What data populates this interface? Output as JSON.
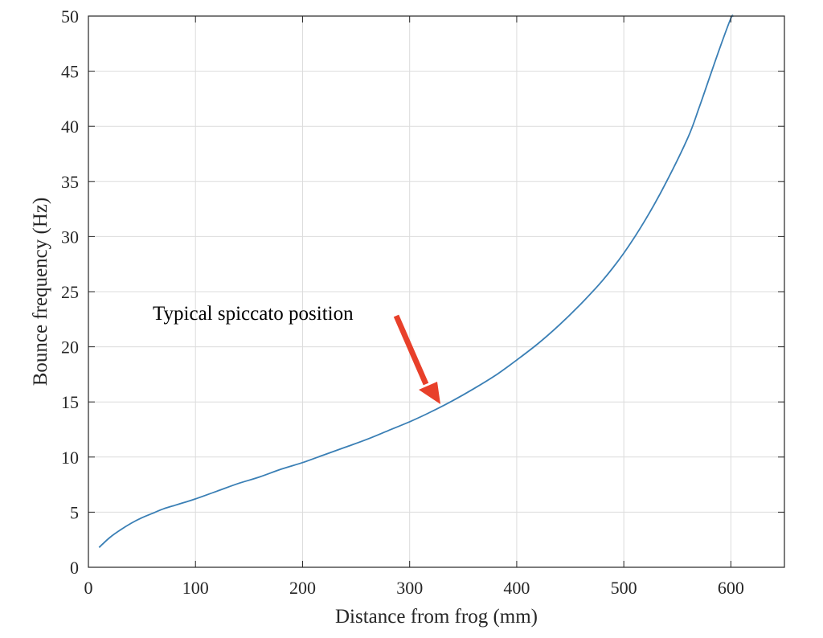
{
  "chart_data": {
    "type": "line",
    "title": "",
    "xlabel": "Distance from frog (mm)",
    "ylabel": "Bounce frequency (Hz)",
    "xlim": [
      0,
      650
    ],
    "ylim": [
      0,
      50
    ],
    "xticks": [
      0,
      100,
      200,
      300,
      400,
      500,
      600
    ],
    "yticks": [
      0,
      5,
      10,
      15,
      20,
      25,
      30,
      35,
      40,
      45,
      50
    ],
    "grid": true,
    "legend": "none",
    "series": [
      {
        "color": "#3a7fb5",
        "x": [
          10,
          20,
          30,
          40,
          50,
          60,
          70,
          80,
          90,
          100,
          120,
          140,
          160,
          180,
          200,
          220,
          240,
          260,
          280,
          300,
          320,
          340,
          360,
          380,
          400,
          420,
          440,
          460,
          480,
          500,
          520,
          540,
          560,
          570,
          580,
          590,
          600,
          602
        ],
        "y": [
          1.8,
          2.7,
          3.4,
          4.0,
          4.5,
          4.9,
          5.3,
          5.6,
          5.9,
          6.2,
          6.9,
          7.6,
          8.2,
          8.9,
          9.5,
          10.2,
          10.9,
          11.6,
          12.4,
          13.2,
          14.1,
          15.1,
          16.2,
          17.4,
          18.8,
          20.3,
          22.0,
          23.9,
          26.0,
          28.5,
          31.5,
          35.0,
          39.0,
          41.6,
          44.4,
          47.2,
          49.8,
          50.0
        ]
      }
    ],
    "annotations": [
      {
        "text": "Typical spiccato position",
        "arrow_color": "#e8402a",
        "arrow_target": [
          330,
          14.5
        ]
      }
    ]
  }
}
